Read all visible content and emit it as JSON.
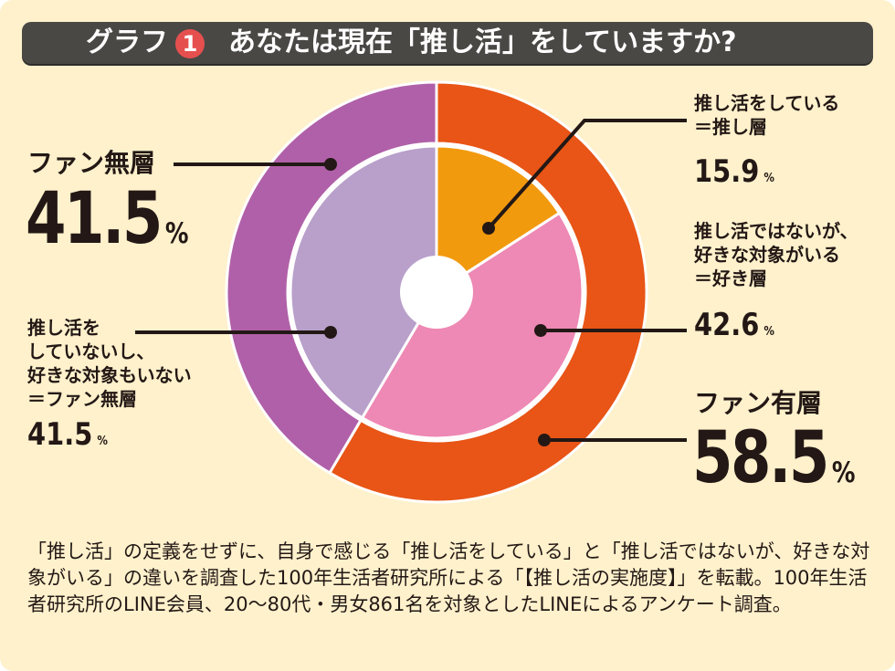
{
  "title": {
    "label": "グラフ",
    "number": "1",
    "question": "あなたは現在「推し活」をしていますか?"
  },
  "chart_data": {
    "type": "nested-donut",
    "outer": [
      {
        "name": "ファン有層",
        "value": 58.5,
        "color": "#E85516"
      },
      {
        "name": "ファン無層",
        "value": 41.5,
        "color": "#B060A8"
      }
    ],
    "inner": [
      {
        "name": "推し活をしている＝推し層",
        "value": 15.9,
        "color": "#F29A0E"
      },
      {
        "name": "推し活ではないが、好きな対象がいる＝好き層",
        "value": 42.6,
        "color": "#EE88B4"
      },
      {
        "name": "推し活をしていないし、好きな対象もいない＝ファン無層",
        "value": 41.5,
        "color": "#B8A0CA"
      }
    ]
  },
  "labels": {
    "fan_none": {
      "title": "ファン無層",
      "value": "41.5",
      "unit": "%"
    },
    "fan_yes": {
      "title": "ファン有層",
      "value": "58.5",
      "unit": "%"
    },
    "oshi": {
      "line1": "推し活をしている",
      "line2": "＝推し層",
      "value": "15.9",
      "unit": "%"
    },
    "suki": {
      "line1": "推し活ではないが、",
      "line2": "好きな対象がいる",
      "line3": "＝好き層",
      "value": "42.6",
      "unit": "%"
    },
    "none": {
      "line1": "推し活を",
      "line2": "していないし、",
      "line3": "好きな対象もいない",
      "line4": "＝ファン無層",
      "value": "41.5",
      "unit": "%"
    }
  },
  "note": "「推し活」の定義をせずに、自身で感じる「推し活をしている」と「推し活ではないが、好きな対象がいる」の違いを調査した100年生活者研究所による「【推し活の実施度】」を転載。100年生活者研究所のLINE会員、20〜80代・男女861名を対象としたLINEによるアンケート調査。"
}
